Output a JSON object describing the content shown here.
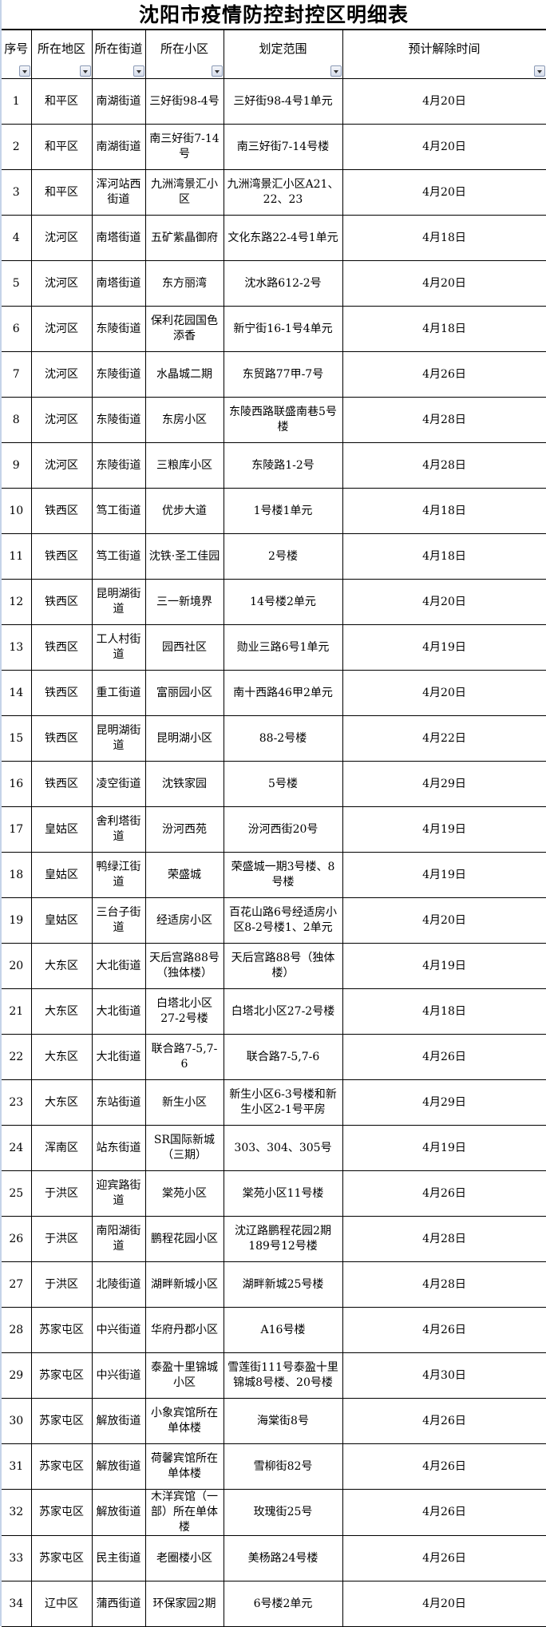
{
  "title": "沈阳市疫情防控封控区明细表",
  "headers": [
    "序号",
    "所在地区",
    "所在街道",
    "所在小区",
    "划定范围",
    "预计解除时间"
  ],
  "filter_icon": "dropdown-filter-icon",
  "rows": [
    [
      "1",
      "和平区",
      "南湖街道",
      "三好街98-4号",
      "三好街98-4号1单元",
      "4月20日"
    ],
    [
      "2",
      "和平区",
      "南湖街道",
      "南三好街7-14号",
      "南三好街7-14号楼",
      "4月20日"
    ],
    [
      "3",
      "和平区",
      "浑河站西街道",
      "九洲湾景汇小区",
      "九洲湾景汇小区A21、22、23",
      "4月20日"
    ],
    [
      "4",
      "沈河区",
      "南塔街道",
      "五矿紫晶御府",
      "文化东路22-4号1单元",
      "4月18日"
    ],
    [
      "5",
      "沈河区",
      "南塔街道",
      "东方丽湾",
      "沈水路612-2号",
      "4月20日"
    ],
    [
      "6",
      "沈河区",
      "东陵街道",
      "保利花园国色添香",
      "新宁街16-1号4单元",
      "4月18日"
    ],
    [
      "7",
      "沈河区",
      "东陵街道",
      "水晶城二期",
      "东贸路77甲-7号",
      "4月26日"
    ],
    [
      "8",
      "沈河区",
      "东陵街道",
      "东房小区",
      "东陵西路联盛南巷5号楼",
      "4月28日"
    ],
    [
      "9",
      "沈河区",
      "东陵街道",
      "三粮库小区",
      "东陵路1-2号",
      "4月28日"
    ],
    [
      "10",
      "铁西区",
      "笃工街道",
      "优步大道",
      "1号楼1单元",
      "4月18日"
    ],
    [
      "11",
      "铁西区",
      "笃工街道",
      "沈铁·圣工佳园",
      "2号楼",
      "4月18日"
    ],
    [
      "12",
      "铁西区",
      "昆明湖街道",
      "三一新境界",
      "14号楼2单元",
      "4月20日"
    ],
    [
      "13",
      "铁西区",
      "工人村街道",
      "园西社区",
      "勋业三路6号1单元",
      "4月19日"
    ],
    [
      "14",
      "铁西区",
      "重工街道",
      "富丽园小区",
      "南十西路46甲2单元",
      "4月20日"
    ],
    [
      "15",
      "铁西区",
      "昆明湖街道",
      "昆明湖小区",
      "88-2号楼",
      "4月22日"
    ],
    [
      "16",
      "铁西区",
      "凌空街道",
      "沈铁家园",
      "5号楼",
      "4月29日"
    ],
    [
      "17",
      "皇姑区",
      "舍利塔街道",
      "汾河西苑",
      "汾河西街20号",
      "4月19日"
    ],
    [
      "18",
      "皇姑区",
      "鸭绿江街道",
      "荣盛城",
      "荣盛城一期3号楼、8号楼",
      "4月19日"
    ],
    [
      "19",
      "皇姑区",
      "三台子街道",
      "经适房小区",
      "百花山路6号经适房小区8-2号楼1、2单元",
      "4月20日"
    ],
    [
      "20",
      "大东区",
      "大北街道",
      "天后宫路88号（独体楼）",
      "天后宫路88号（独体楼）",
      "4月19日"
    ],
    [
      "21",
      "大东区",
      "大北街道",
      "白塔北小区27-2号楼",
      "白塔北小区27-2号楼",
      "4月18日"
    ],
    [
      "22",
      "大东区",
      "大北街道",
      "联合路7-5,7-6",
      "联合路7-5,7-6",
      "4月26日"
    ],
    [
      "23",
      "大东区",
      "东站街道",
      "新生小区",
      "新生小区6-3号楼和新生小区2-1号平房",
      "4月29日"
    ],
    [
      "24",
      "浑南区",
      "站东街道",
      "SR国际新城（三期）",
      "303、304、305号",
      "4月19日"
    ],
    [
      "25",
      "于洪区",
      "迎宾路街道",
      "棠苑小区",
      "棠苑小区11号楼",
      "4月26日"
    ],
    [
      "26",
      "于洪区",
      "南阳湖街道",
      "鹏程花园小区",
      "沈辽路鹏程花园2期189号12号楼",
      "4月28日"
    ],
    [
      "27",
      "于洪区",
      "北陵街道",
      "湖畔新城小区",
      "湖畔新城25号楼",
      "4月28日"
    ],
    [
      "28",
      "苏家屯区",
      "中兴街道",
      "华府丹郡小区",
      "A16号楼",
      "4月26日"
    ],
    [
      "29",
      "苏家屯区",
      "中兴街道",
      "泰盈十里锦城小区",
      "雪莲街111号泰盈十里锦城8号楼、20号楼",
      "4月30日"
    ],
    [
      "30",
      "苏家屯区",
      "解放街道",
      "小象宾馆所在单体楼",
      "海棠街8号",
      "4月26日"
    ],
    [
      "31",
      "苏家屯区",
      "解放街道",
      "荷馨宾馆所在单体楼",
      "雪柳街82号",
      "4月26日"
    ],
    [
      "32",
      "苏家屯区",
      "解放街道",
      "木洋宾馆（一部）所在单体楼",
      "玫瑰街25号",
      "4月26日"
    ],
    [
      "33",
      "苏家屯区",
      "民主街道",
      "老圈楼小区",
      "美杨路24号楼",
      "4月26日"
    ],
    [
      "34",
      "辽中区",
      "蒲西街道",
      "环保家园2期",
      "6号楼2单元",
      "4月20日"
    ]
  ]
}
